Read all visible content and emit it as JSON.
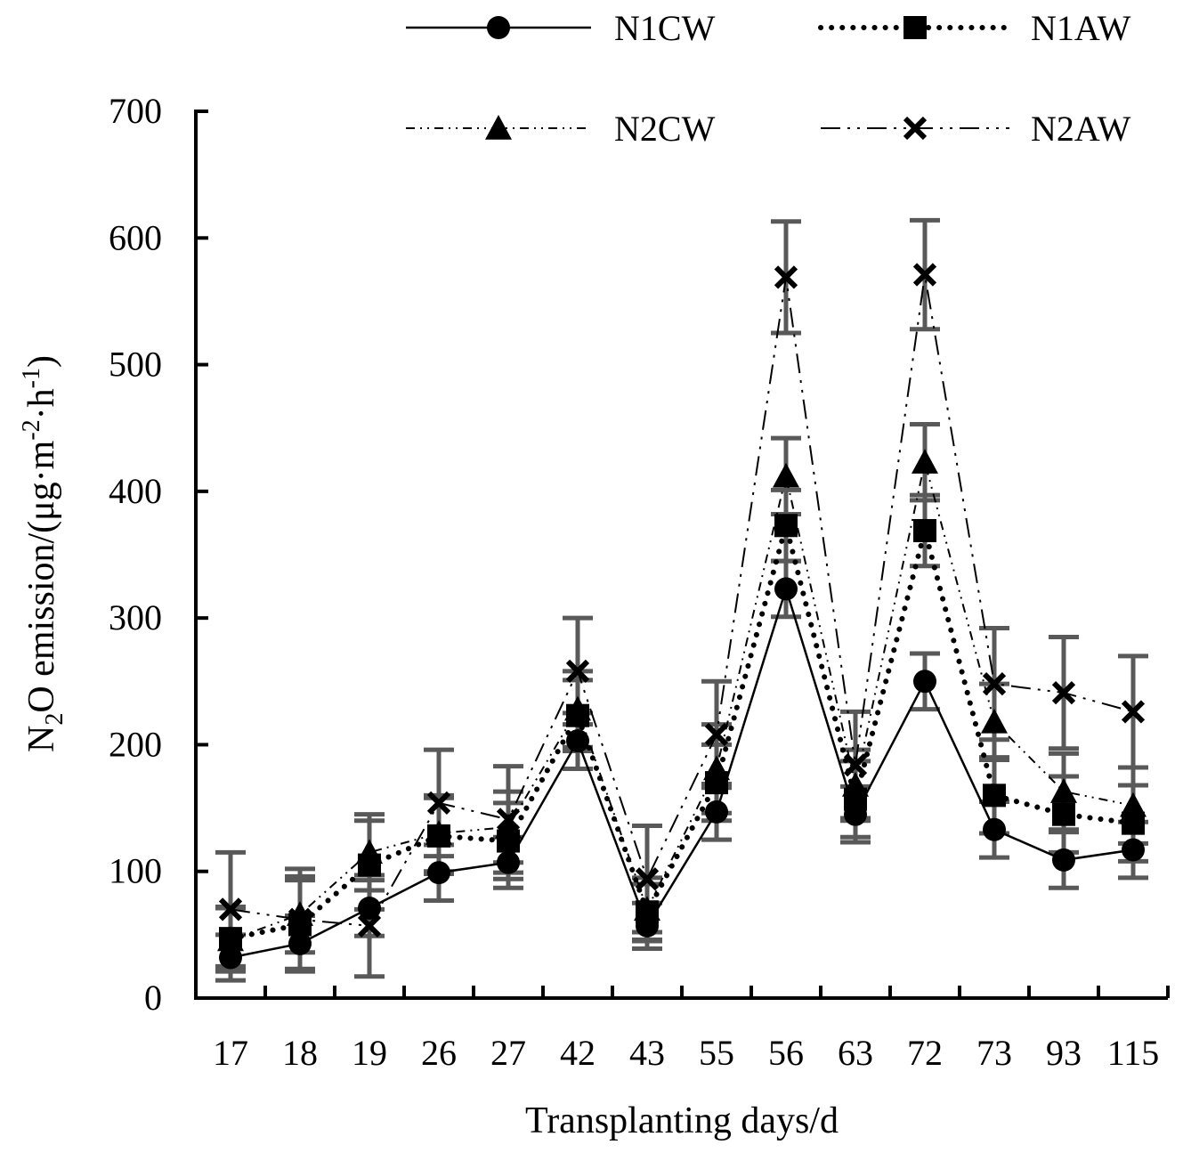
{
  "chart_data": {
    "type": "line",
    "title": "",
    "xlabel": "Transplanting days/d",
    "ylabel_parts": {
      "a": "N",
      "a_sub": "2",
      "b": "O emission/(μg·m",
      "b_sup": "-2",
      "c": "·h",
      "c_sup": "-1",
      "d": ")"
    },
    "categories": [
      "17",
      "18",
      "19",
      "26",
      "27",
      "42",
      "43",
      "55",
      "56",
      "63",
      "72",
      "73",
      "93",
      "115"
    ],
    "ylim": [
      0,
      700
    ],
    "yticks": [
      0,
      100,
      200,
      300,
      400,
      500,
      600,
      700
    ],
    "ytick_labels": [
      "0",
      "100",
      "200",
      "300",
      "400",
      "500",
      "600",
      "700"
    ],
    "grid": false,
    "legend_position": "top",
    "series": [
      {
        "name": "N1CW",
        "marker": "circle",
        "line_style": "solid",
        "values": [
          32,
          43,
          71,
          99,
          107,
          203,
          57,
          147,
          323,
          145,
          250,
          133,
          109,
          117
        ],
        "errors": [
          18,
          22,
          22,
          22,
          20,
          22,
          18,
          22,
          22,
          22,
          22,
          22,
          22,
          22
        ]
      },
      {
        "name": "N1AW",
        "marker": "square",
        "line_style": "dotted",
        "values": [
          47,
          58,
          105,
          128,
          124,
          223,
          68,
          170,
          373,
          157,
          369,
          160,
          145,
          138
        ],
        "errors": [
          25,
          35,
          35,
          30,
          30,
          28,
          22,
          30,
          28,
          30,
          28,
          30,
          30,
          30
        ]
      },
      {
        "name": "N2CW",
        "marker": "triangle",
        "line_style": "dash-dot-dot",
        "values": [
          46,
          66,
          115,
          130,
          135,
          228,
          70,
          181,
          412,
          168,
          423,
          218,
          163,
          152
        ],
        "errors": [
          25,
          30,
          30,
          30,
          28,
          30,
          25,
          35,
          30,
          28,
          30,
          30,
          30,
          30
        ]
      },
      {
        "name": "N2AW",
        "marker": "x",
        "line_style": "long-dash-dot-dot",
        "values": [
          70,
          62,
          57,
          154,
          141,
          258,
          94,
          208,
          569,
          184,
          571,
          248,
          241,
          226
        ],
        "errors": [
          45,
          40,
          40,
          42,
          42,
          42,
          42,
          42,
          44,
          42,
          43,
          44,
          44,
          44
        ]
      }
    ]
  }
}
